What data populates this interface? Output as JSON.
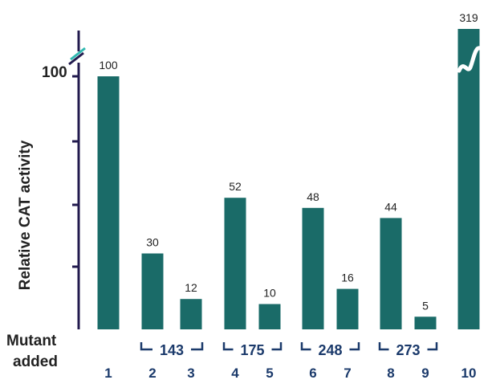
{
  "chart_data": {
    "type": "bar",
    "categories": [
      "1",
      "2",
      "3",
      "4",
      "5",
      "6",
      "7",
      "8",
      "9",
      "10"
    ],
    "values": [
      100,
      30,
      12,
      52,
      10,
      48,
      16,
      44,
      5,
      319
    ],
    "value_labels": [
      "100",
      "30",
      "12",
      "52",
      "10",
      "48",
      "16",
      "44",
      "5",
      "319"
    ],
    "ylabel": "Relative CAT activity",
    "yticks": [
      {
        "value": 100,
        "label": "100"
      }
    ],
    "y_axis_break": true,
    "x_row_label": [
      "Mutant",
      "added"
    ],
    "groups": [
      {
        "label": "143",
        "lanes": [
          2,
          3
        ]
      },
      {
        "label": "175",
        "lanes": [
          4,
          5
        ]
      },
      {
        "label": "248",
        "lanes": [
          6,
          7
        ]
      },
      {
        "label": "273",
        "lanes": [
          8,
          9
        ]
      }
    ],
    "colors": {
      "bar": "#1a6b68",
      "axis_dark": "#221a4e",
      "axis_teal": "#2fb8b0",
      "bracket": "#1b3a6b",
      "break_mark": "#1a6b68"
    }
  }
}
